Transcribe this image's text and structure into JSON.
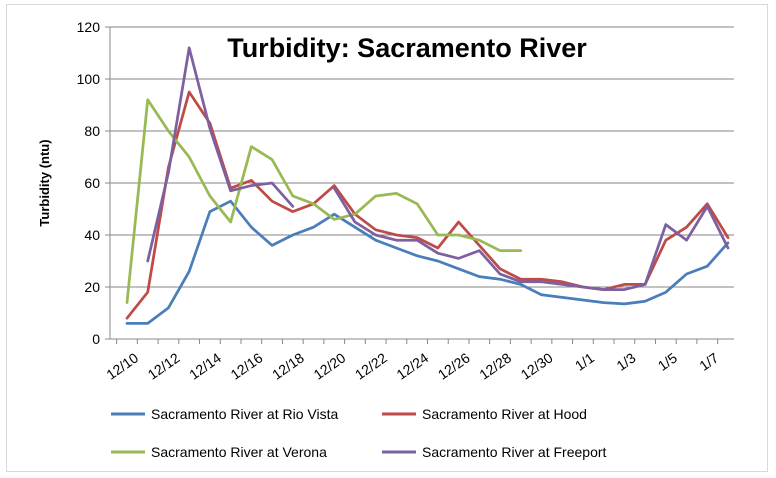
{
  "chart_data": {
    "type": "line",
    "title": "Turbidity: Sacramento River",
    "xlabel": "",
    "ylabel": "Turbidity (ntu)",
    "ylim": [
      0,
      120
    ],
    "yticks": [
      0,
      20,
      40,
      60,
      80,
      100,
      120
    ],
    "x": [
      "12/10",
      "12/11",
      "12/12",
      "12/13",
      "12/14",
      "12/15",
      "12/16",
      "12/17",
      "12/18",
      "12/19",
      "12/20",
      "12/21",
      "12/22",
      "12/23",
      "12/24",
      "12/25",
      "12/26",
      "12/27",
      "12/28",
      "12/29",
      "12/30",
      "12/31",
      "1/1",
      "1/2",
      "1/3",
      "1/4",
      "1/5",
      "1/6",
      "1/7",
      "1/8"
    ],
    "xtick_labels": [
      "12/10",
      "12/12",
      "12/14",
      "12/16",
      "12/18",
      "12/20",
      "12/22",
      "12/24",
      "12/26",
      "12/28",
      "12/30",
      "1/1",
      "1/3",
      "1/5",
      "1/7"
    ],
    "grid": "horizontal",
    "legend": "bottom",
    "series": [
      {
        "name": "Sacramento River at Rio Vista",
        "color": "#4a7ebb",
        "values": [
          6,
          6,
          12,
          26,
          49,
          53,
          43,
          36,
          40,
          43,
          48,
          43,
          38,
          35,
          32,
          30,
          27,
          24,
          23,
          21,
          17,
          16,
          15,
          14,
          13.5,
          14.5,
          18,
          25,
          28,
          37
        ]
      },
      {
        "name": "Sacramento River at Hood",
        "color": "#be4b48",
        "values": [
          8,
          18,
          66,
          95,
          83,
          58,
          61,
          53,
          49,
          52,
          59,
          48,
          42,
          40,
          39,
          35,
          45,
          36,
          27,
          23,
          23,
          22,
          20,
          19,
          21,
          21,
          38,
          43,
          52,
          39
        ]
      },
      {
        "name": "Sacramento River at Verona",
        "color": "#98b954",
        "values": [
          14,
          92,
          80,
          70,
          55,
          45,
          74,
          69,
          55,
          52,
          46,
          48,
          55,
          56,
          52,
          40,
          40,
          38,
          34,
          34,
          null,
          null,
          null,
          null,
          null,
          null,
          null,
          null,
          null,
          null
        ]
      },
      {
        "name": "Sacramento River at Freeport",
        "color": "#7d60a0",
        "values": [
          null,
          30,
          64,
          112,
          81,
          57,
          59,
          60,
          51,
          null,
          58,
          45,
          40,
          38,
          38,
          33,
          31,
          34,
          25,
          22,
          22,
          21,
          20,
          19,
          19,
          21,
          44,
          38,
          51,
          35
        ]
      }
    ]
  }
}
